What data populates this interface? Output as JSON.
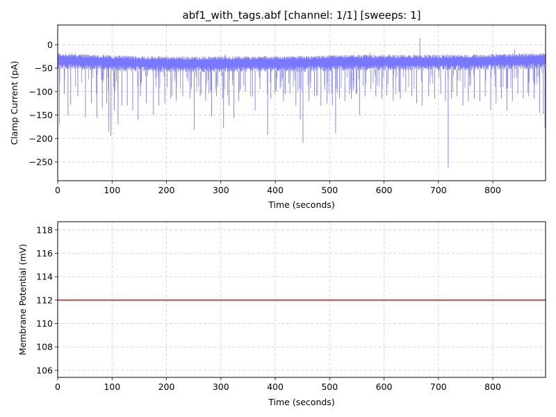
{
  "title": "abf1_with_tags.abf [channel: 1/1] [sweeps: 1]",
  "chart_data": [
    {
      "type": "line",
      "name": "current-trace",
      "xlabel": "Time (seconds)",
      "ylabel": "Clamp Current (pA)",
      "xlim": [
        0,
        897
      ],
      "ylim": [
        -290,
        42
      ],
      "xticks": [
        0,
        100,
        200,
        300,
        400,
        500,
        600,
        700,
        800
      ],
      "yticks": [
        -250,
        -200,
        -150,
        -100,
        -50,
        0
      ],
      "xtick_labels": [
        "0",
        "100",
        "200",
        "300",
        "400",
        "500",
        "600",
        "700",
        "800"
      ],
      "ytick_labels": [
        "−250",
        "−200",
        "−150",
        "−100",
        "−50",
        "0"
      ],
      "grid": true,
      "color": "#7777ff",
      "baseline": {
        "x": [
          0,
          50,
          150,
          250,
          350,
          450,
          550,
          650,
          750,
          850,
          897
        ],
        "y": [
          -30,
          -32,
          -36,
          -37,
          -36,
          -36,
          -33,
          -33,
          -33,
          -30,
          -30
        ]
      },
      "events": [
        {
          "t": 3,
          "v": -170
        },
        {
          "t": 12,
          "v": -105
        },
        {
          "t": 19,
          "v": -150
        },
        {
          "t": 24,
          "v": -128
        },
        {
          "t": 37,
          "v": -110
        },
        {
          "t": 51,
          "v": -155
        },
        {
          "t": 62,
          "v": -125
        },
        {
          "t": 72,
          "v": -155
        },
        {
          "t": 82,
          "v": -135
        },
        {
          "t": 90,
          "v": -125
        },
        {
          "t": 94,
          "v": -185
        },
        {
          "t": 98,
          "v": -195
        },
        {
          "t": 104,
          "v": -140
        },
        {
          "t": 111,
          "v": -170
        },
        {
          "t": 118,
          "v": -130
        },
        {
          "t": 128,
          "v": -130
        },
        {
          "t": 138,
          "v": -140
        },
        {
          "t": 148,
          "v": -160
        },
        {
          "t": 152,
          "v": -110
        },
        {
          "t": 163,
          "v": -125
        },
        {
          "t": 176,
          "v": -150
        },
        {
          "t": 186,
          "v": -130
        },
        {
          "t": 197,
          "v": -125
        },
        {
          "t": 208,
          "v": -115
        },
        {
          "t": 218,
          "v": -120
        },
        {
          "t": 230,
          "v": -110
        },
        {
          "t": 243,
          "v": -115
        },
        {
          "t": 251,
          "v": -182
        },
        {
          "t": 262,
          "v": -110
        },
        {
          "t": 272,
          "v": -120
        },
        {
          "t": 283,
          "v": -153
        },
        {
          "t": 292,
          "v": -110
        },
        {
          "t": 303,
          "v": -115
        },
        {
          "t": 305,
          "v": -178
        },
        {
          "t": 315,
          "v": -130
        },
        {
          "t": 324,
          "v": -157
        },
        {
          "t": 333,
          "v": -120
        },
        {
          "t": 345,
          "v": -100
        },
        {
          "t": 355,
          "v": -110
        },
        {
          "t": 363,
          "v": -140
        },
        {
          "t": 372,
          "v": -95
        },
        {
          "t": 386,
          "v": -192
        },
        {
          "t": 392,
          "v": -115
        },
        {
          "t": 402,
          "v": -100
        },
        {
          "t": 415,
          "v": -120
        },
        {
          "t": 427,
          "v": -105
        },
        {
          "t": 438,
          "v": -130
        },
        {
          "t": 446,
          "v": -160
        },
        {
          "t": 451,
          "v": -209
        },
        {
          "t": 462,
          "v": -120
        },
        {
          "t": 472,
          "v": -110
        },
        {
          "t": 484,
          "v": -130
        },
        {
          "t": 495,
          "v": -125
        },
        {
          "t": 505,
          "v": -130
        },
        {
          "t": 511,
          "v": -188
        },
        {
          "t": 518,
          "v": -115
        },
        {
          "t": 528,
          "v": -120
        },
        {
          "t": 540,
          "v": -115
        },
        {
          "t": 549,
          "v": -105
        },
        {
          "t": 555,
          "v": -150
        },
        {
          "t": 565,
          "v": -110
        },
        {
          "t": 576,
          "v": -95
        },
        {
          "t": 585,
          "v": -110
        },
        {
          "t": 596,
          "v": -115
        },
        {
          "t": 605,
          "v": -108
        },
        {
          "t": 617,
          "v": -120
        },
        {
          "t": 630,
          "v": -115
        },
        {
          "t": 640,
          "v": -100
        },
        {
          "t": 651,
          "v": -110
        },
        {
          "t": 660,
          "v": -125
        },
        {
          "t": 670,
          "v": -130
        },
        {
          "t": 682,
          "v": -110
        },
        {
          "t": 693,
          "v": -115
        },
        {
          "t": 704,
          "v": -105
        },
        {
          "t": 713,
          "v": -120
        },
        {
          "t": 718,
          "v": -262
        },
        {
          "t": 724,
          "v": -115
        },
        {
          "t": 734,
          "v": -110
        },
        {
          "t": 745,
          "v": -130
        },
        {
          "t": 755,
          "v": -120
        },
        {
          "t": 766,
          "v": -115
        },
        {
          "t": 776,
          "v": -120
        },
        {
          "t": 786,
          "v": -110
        },
        {
          "t": 796,
          "v": -140
        },
        {
          "t": 806,
          "v": -125
        },
        {
          "t": 816,
          "v": -115
        },
        {
          "t": 826,
          "v": -140
        },
        {
          "t": 836,
          "v": -120
        },
        {
          "t": 846,
          "v": -105
        },
        {
          "t": 856,
          "v": -115
        },
        {
          "t": 866,
          "v": -110
        },
        {
          "t": 876,
          "v": -115
        },
        {
          "t": 886,
          "v": -145
        },
        {
          "t": 893,
          "v": -148
        },
        {
          "t": 896,
          "v": -178
        }
      ],
      "spikes_up": [
        {
          "t": 666,
          "v": 14
        },
        {
          "t": 575,
          "v": -18
        },
        {
          "t": 840,
          "v": -10
        },
        {
          "t": 308,
          "v": -20
        }
      ]
    },
    {
      "type": "line",
      "name": "potential-trace",
      "xlabel": "Time (seconds)",
      "ylabel": "Membrane Potential (mV)",
      "xlim": [
        0,
        897
      ],
      "ylim": [
        105.4,
        118.7
      ],
      "xticks": [
        0,
        100,
        200,
        300,
        400,
        500,
        600,
        700,
        800
      ],
      "yticks": [
        106,
        108,
        110,
        112,
        114,
        116,
        118
      ],
      "xtick_labels": [
        "0",
        "100",
        "200",
        "300",
        "400",
        "500",
        "600",
        "700",
        "800"
      ],
      "ytick_labels": [
        "106",
        "108",
        "110",
        "112",
        "114",
        "116",
        "118"
      ],
      "grid": true,
      "color": "#e0251b",
      "x": [
        0,
        897
      ],
      "y": [
        112,
        112
      ]
    }
  ]
}
